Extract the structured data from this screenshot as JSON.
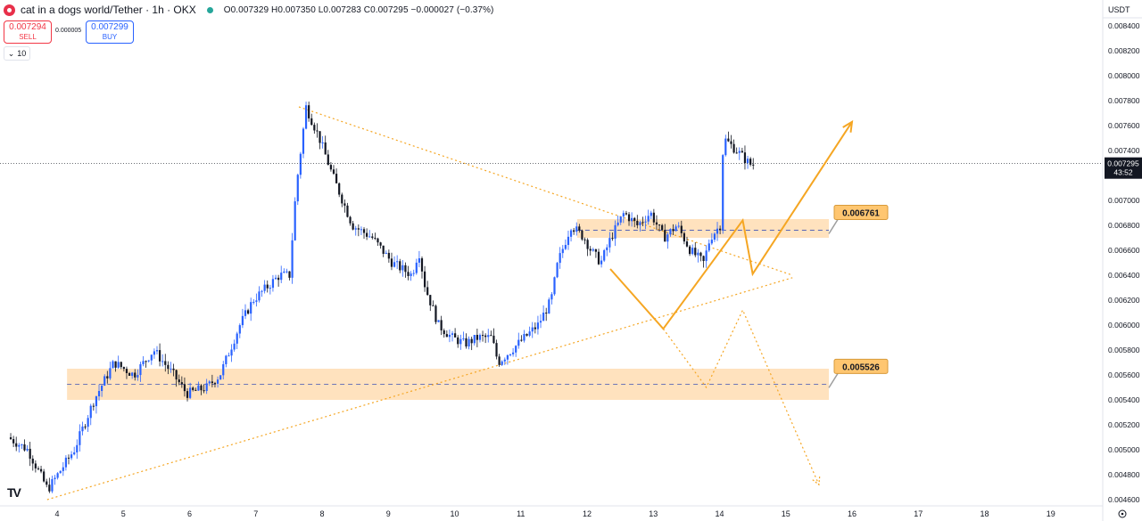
{
  "header": {
    "symbol_title": "cat in a dogs world/Tether · 1h · OKX",
    "ohlc": "O0.007329 H0.007350 L0.007283 C0.007295 −0.000027 (−0.37%)"
  },
  "trade": {
    "sell_price": "0.007294",
    "sell_label": "SELL",
    "spread": "0.000005",
    "buy_price": "0.007299",
    "buy_label": "BUY"
  },
  "indicator": {
    "volume_value": "10"
  },
  "price_axis": {
    "currency": "USDT",
    "current_price": "0.007295",
    "countdown": "43:52"
  },
  "icons": {
    "logo": "tradingview-logo-icon",
    "settings": "gear-icon"
  },
  "colors": {
    "bull": "#2962ff",
    "bear": "#131722",
    "zone": "#ffd8a8",
    "line": "#f5a623",
    "label": "#ffc670"
  },
  "chart_data": {
    "type": "candlestick",
    "title": "cat in a dogs world/Tether · 1h · OKX",
    "x_tick_labels": [
      "4",
      "5",
      "6",
      "7",
      "8",
      "9",
      "10",
      "11",
      "12",
      "13",
      "14",
      "15",
      "16",
      "17",
      "18",
      "19"
    ],
    "x_range": [
      3.3,
      19.5
    ],
    "y_tick_labels": [
      "0.008400",
      "0.008200",
      "0.008000",
      "0.007800",
      "0.007600",
      "0.007400",
      "0.007200",
      "0.007000",
      "0.006800",
      "0.006600",
      "0.006400",
      "0.006200",
      "0.006000",
      "0.005800",
      "0.005600",
      "0.005400",
      "0.005200",
      "0.005000",
      "0.004800",
      "0.004600"
    ],
    "y_range": [
      0.00458,
      0.00846
    ],
    "path_x": [
      3.3,
      3.6,
      3.9,
      4.3,
      4.6,
      4.9,
      5.2,
      5.5,
      5.8,
      6.0,
      6.3,
      6.5,
      6.8,
      7.0,
      7.2,
      7.4,
      7.55,
      7.65,
      7.8,
      8.0,
      8.2,
      8.5,
      8.8,
      9.1,
      9.4,
      9.5,
      9.6,
      9.8,
      10.0,
      10.2,
      10.4,
      10.6,
      10.7,
      10.9,
      11.1,
      11.3,
      11.5,
      11.6,
      11.8,
      12.0,
      12.1,
      12.25,
      12.4,
      12.6,
      12.8,
      13.0,
      13.2,
      13.4,
      13.6,
      13.8,
      13.9,
      14.05,
      14.1,
      14.3,
      14.5
    ],
    "path_y": [
      0.0051,
      0.005,
      0.00468,
      0.005,
      0.0054,
      0.0057,
      0.0056,
      0.0058,
      0.0056,
      0.00545,
      0.0055,
      0.0056,
      0.006,
      0.0062,
      0.0063,
      0.0064,
      0.0064,
      0.0071,
      0.00775,
      0.0075,
      0.0072,
      0.0068,
      0.0067,
      0.0065,
      0.0064,
      0.0066,
      0.0063,
      0.006,
      0.0059,
      0.00585,
      0.0059,
      0.0059,
      0.0057,
      0.0058,
      0.0059,
      0.006,
      0.0062,
      0.0065,
      0.0068,
      0.0067,
      0.0066,
      0.0065,
      0.0067,
      0.0069,
      0.0068,
      0.0069,
      0.0067,
      0.0068,
      0.0066,
      0.0065,
      0.0067,
      0.0068,
      0.0075,
      0.0074,
      0.00729
    ],
    "horizontal_zones": [
      {
        "label": "0.006761",
        "value": 0.006761,
        "low": 0.0067,
        "high": 0.00685,
        "x_from": 11.85,
        "x_to": 15.65
      },
      {
        "label": "0.005526",
        "value": 0.005526,
        "low": 0.0054,
        "high": 0.00565,
        "x_from": 4.15,
        "x_to": 15.65
      }
    ],
    "trendlines": [
      {
        "style": "dotted",
        "points": [
          [
            7.65,
            0.00775
          ],
          [
            15.1,
            0.0064
          ]
        ]
      },
      {
        "style": "dotted",
        "points": [
          [
            3.85,
            0.0046
          ],
          [
            15.1,
            0.00638
          ]
        ]
      }
    ],
    "projection_solid": {
      "x": [
        12.35,
        13.15,
        14.35,
        14.5,
        16.0
      ],
      "y": [
        0.00645,
        0.00597,
        0.00684,
        0.00641,
        0.00763
      ]
    },
    "projection_dotted": {
      "x": [
        13.15,
        13.8,
        14.35,
        15.5
      ],
      "y": [
        0.00597,
        0.0055,
        0.00612,
        0.00472
      ]
    }
  }
}
